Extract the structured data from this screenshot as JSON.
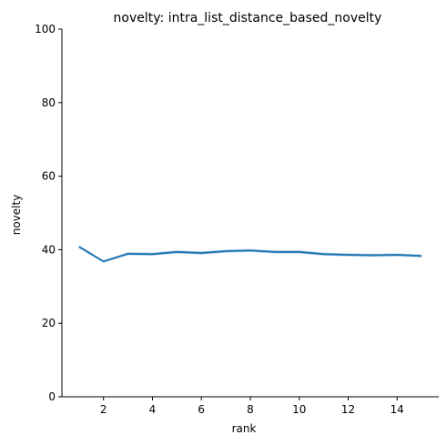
{
  "chart_data": {
    "type": "line",
    "title": "novelty: intra_list_distance_based_novelty",
    "xlabel": "rank",
    "ylabel": "novelty",
    "xlim": [
      0.3,
      15.7
    ],
    "ylim": [
      0,
      100
    ],
    "xticks": [
      2,
      4,
      6,
      8,
      10,
      12,
      14
    ],
    "yticks": [
      0,
      20,
      40,
      60,
      80,
      100
    ],
    "grid": false,
    "line_color": "#1f77b4",
    "band_color": "#a6c8e4",
    "series": [
      {
        "x": [
          1,
          2,
          3,
          4,
          5,
          6,
          7,
          8,
          9,
          10,
          11,
          12,
          13,
          14,
          15
        ],
        "y": [
          40.8,
          36.8,
          38.9,
          38.8,
          39.4,
          39.1,
          39.6,
          39.8,
          39.4,
          39.4,
          38.8,
          38.6,
          38.5,
          38.6,
          38.3
        ],
        "lower": [
          40.4,
          36.5,
          38.5,
          38.4,
          39.0,
          38.7,
          39.2,
          39.4,
          39.0,
          39.0,
          38.4,
          38.2,
          38.1,
          38.2,
          37.9
        ],
        "upper": [
          41.2,
          37.1,
          39.3,
          39.2,
          39.8,
          39.5,
          40.0,
          40.2,
          39.8,
          39.8,
          39.2,
          39.0,
          38.9,
          39.0,
          38.7
        ]
      }
    ]
  }
}
